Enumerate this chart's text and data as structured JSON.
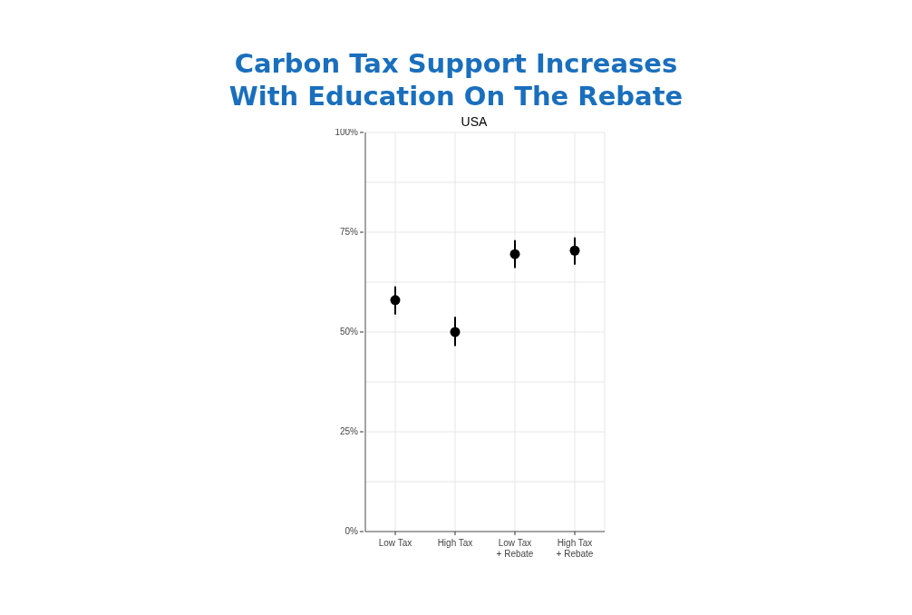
{
  "chart_data": {
    "type": "scatter",
    "title": "Carbon Tax Support Increases\nWith Education On The Rebate",
    "subtitle": "USA",
    "categories": [
      "Low Tax",
      "High Tax",
      "Low Tax\n+ Rebate",
      "High Tax\n+ Rebate"
    ],
    "series": [
      {
        "color": "#000000",
        "values": [
          58,
          50,
          69.5,
          70.4
        ],
        "errors": [
          [
            54.4,
            61.4
          ],
          [
            46.5,
            53.8
          ],
          [
            66,
            73
          ],
          [
            66.9,
            73.7
          ]
        ]
      }
    ],
    "ylim": [
      0,
      100
    ],
    "yticks": [
      {
        "value": 0,
        "label": "0%"
      },
      {
        "value": 12.5,
        "label": null
      },
      {
        "value": 25,
        "label": "25%"
      },
      {
        "value": 37.5,
        "label": null
      },
      {
        "value": 50,
        "label": "50%"
      },
      {
        "value": 62.5,
        "label": null
      },
      {
        "value": 75,
        "label": "75%"
      },
      {
        "value": 87.5,
        "label": null
      },
      {
        "value": 100,
        "label": "100%"
      }
    ],
    "grid": true,
    "marker": "circle"
  }
}
